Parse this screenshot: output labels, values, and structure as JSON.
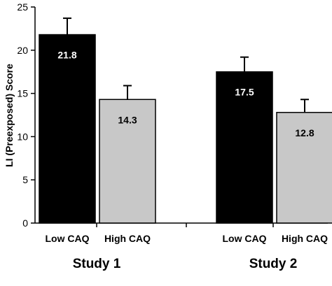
{
  "chart_data": {
    "type": "bar",
    "ylabel": "LI (Preexposed) Score",
    "ylim": [
      0,
      25
    ],
    "yticks": [
      0,
      5,
      10,
      15,
      20,
      25
    ],
    "groups": [
      {
        "label": "Study 1",
        "bars": [
          {
            "category": "Low CAQ",
            "value": 21.8,
            "value_label": "21.8",
            "error": 1.9,
            "color": "#000000",
            "label_color": "#ffffff"
          },
          {
            "category": "High CAQ",
            "value": 14.3,
            "value_label": "14.3",
            "error": 1.6,
            "color": "#c8c8c8",
            "label_color": "#000000"
          }
        ]
      },
      {
        "label": "Study 2",
        "bars": [
          {
            "category": "Low CAQ",
            "value": 17.5,
            "value_label": "17.5",
            "error": 1.7,
            "color": "#000000",
            "label_color": "#ffffff"
          },
          {
            "category": "High CAQ",
            "value": 12.8,
            "value_label": "12.8",
            "error": 1.5,
            "color": "#c8c8c8",
            "label_color": "#000000"
          }
        ]
      }
    ],
    "grid": false,
    "error_bars": "upper"
  }
}
